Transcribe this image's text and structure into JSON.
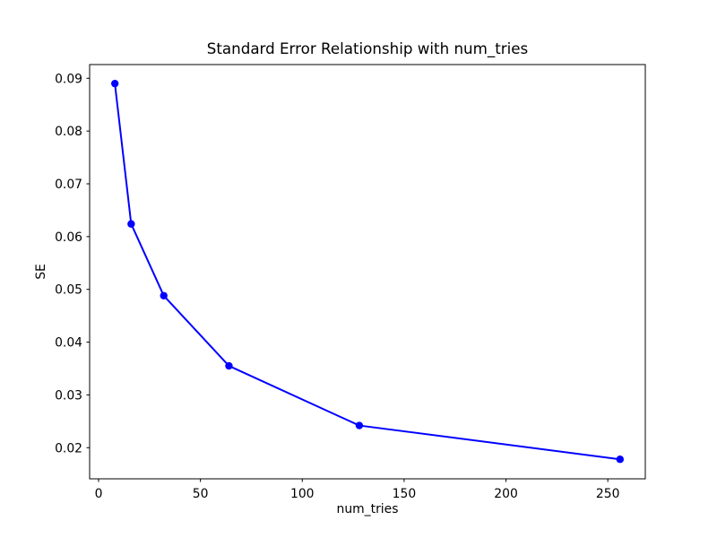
{
  "chart_data": {
    "type": "line",
    "title": "Standard Error Relationship with num_tries",
    "xlabel": "num_tries",
    "ylabel": "SE",
    "x": [
      8,
      16,
      32,
      64,
      128,
      256
    ],
    "y": [
      0.089,
      0.0624,
      0.0488,
      0.0355,
      0.0242,
      0.0178
    ],
    "series_name": "SE",
    "line_color": "#0000ff",
    "marker": "circle",
    "marker_color": "#0000ff",
    "xlim": [
      -4.4,
      268.4
    ],
    "ylim": [
      0.0141,
      0.0926
    ],
    "xticks": [
      0,
      50,
      100,
      150,
      200,
      250
    ],
    "yticks": [
      0.02,
      0.03,
      0.04,
      0.05,
      0.06,
      0.07,
      0.08,
      0.09
    ],
    "ytick_decimals": 2,
    "grid": false,
    "legend_position": "none",
    "background": "#ffffff",
    "spine_color": "#000000"
  }
}
